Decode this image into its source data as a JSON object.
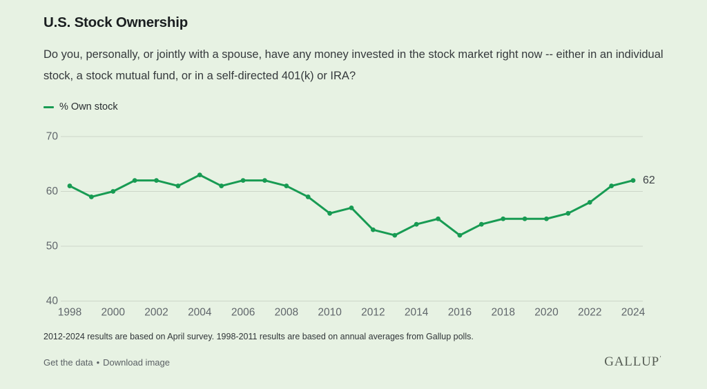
{
  "page": {
    "background": "#e7f2e3"
  },
  "header": {
    "title": "U.S. Stock Ownership",
    "subtitle": "Do you, personally, or jointly with a spouse, have any money invested in the stock market right now -- either in an individual stock, a stock mutual fund, or in a self-directed 401(k) or IRA?"
  },
  "legend": {
    "series_label": "% Own stock"
  },
  "chart_data": {
    "type": "line",
    "title": "U.S. Stock Ownership",
    "xlabel": "",
    "ylabel": "",
    "x": [
      1998,
      1999,
      2000,
      2001,
      2002,
      2003,
      2004,
      2005,
      2006,
      2007,
      2008,
      2009,
      2010,
      2011,
      2012,
      2013,
      2014,
      2015,
      2016,
      2017,
      2018,
      2019,
      2020,
      2021,
      2022,
      2023,
      2024
    ],
    "series": [
      {
        "name": "% Own stock",
        "color": "#189b53",
        "values": [
          61,
          59,
          60,
          62,
          62,
          61,
          63,
          61,
          62,
          62,
          61,
          59,
          56,
          57,
          53,
          52,
          54,
          55,
          52,
          54,
          55,
          55,
          55,
          56,
          58,
          61,
          62
        ]
      }
    ],
    "x_ticks": [
      1998,
      2000,
      2002,
      2004,
      2006,
      2008,
      2010,
      2012,
      2014,
      2016,
      2018,
      2020,
      2022,
      2024
    ],
    "y_ticks": [
      40,
      50,
      60,
      70
    ],
    "ylim": [
      40,
      72
    ],
    "grid": true,
    "end_point_label": "62",
    "legend_position": "top-left"
  },
  "footnote": "2012-2024 results are based on April survey. 1998-2011 results are based on annual averages from Gallup polls.",
  "footer": {
    "links": [
      {
        "label": "Get the data"
      },
      {
        "label": "Download image"
      }
    ],
    "separator": "•",
    "brand": "GALLUP",
    "brand_mark": "ʼ"
  },
  "colors": {
    "line": "#189b53",
    "grid": "#ccd6c8",
    "tick_text": "#60666b",
    "end_label": "#3e4247",
    "background": "#e7f2e3"
  }
}
